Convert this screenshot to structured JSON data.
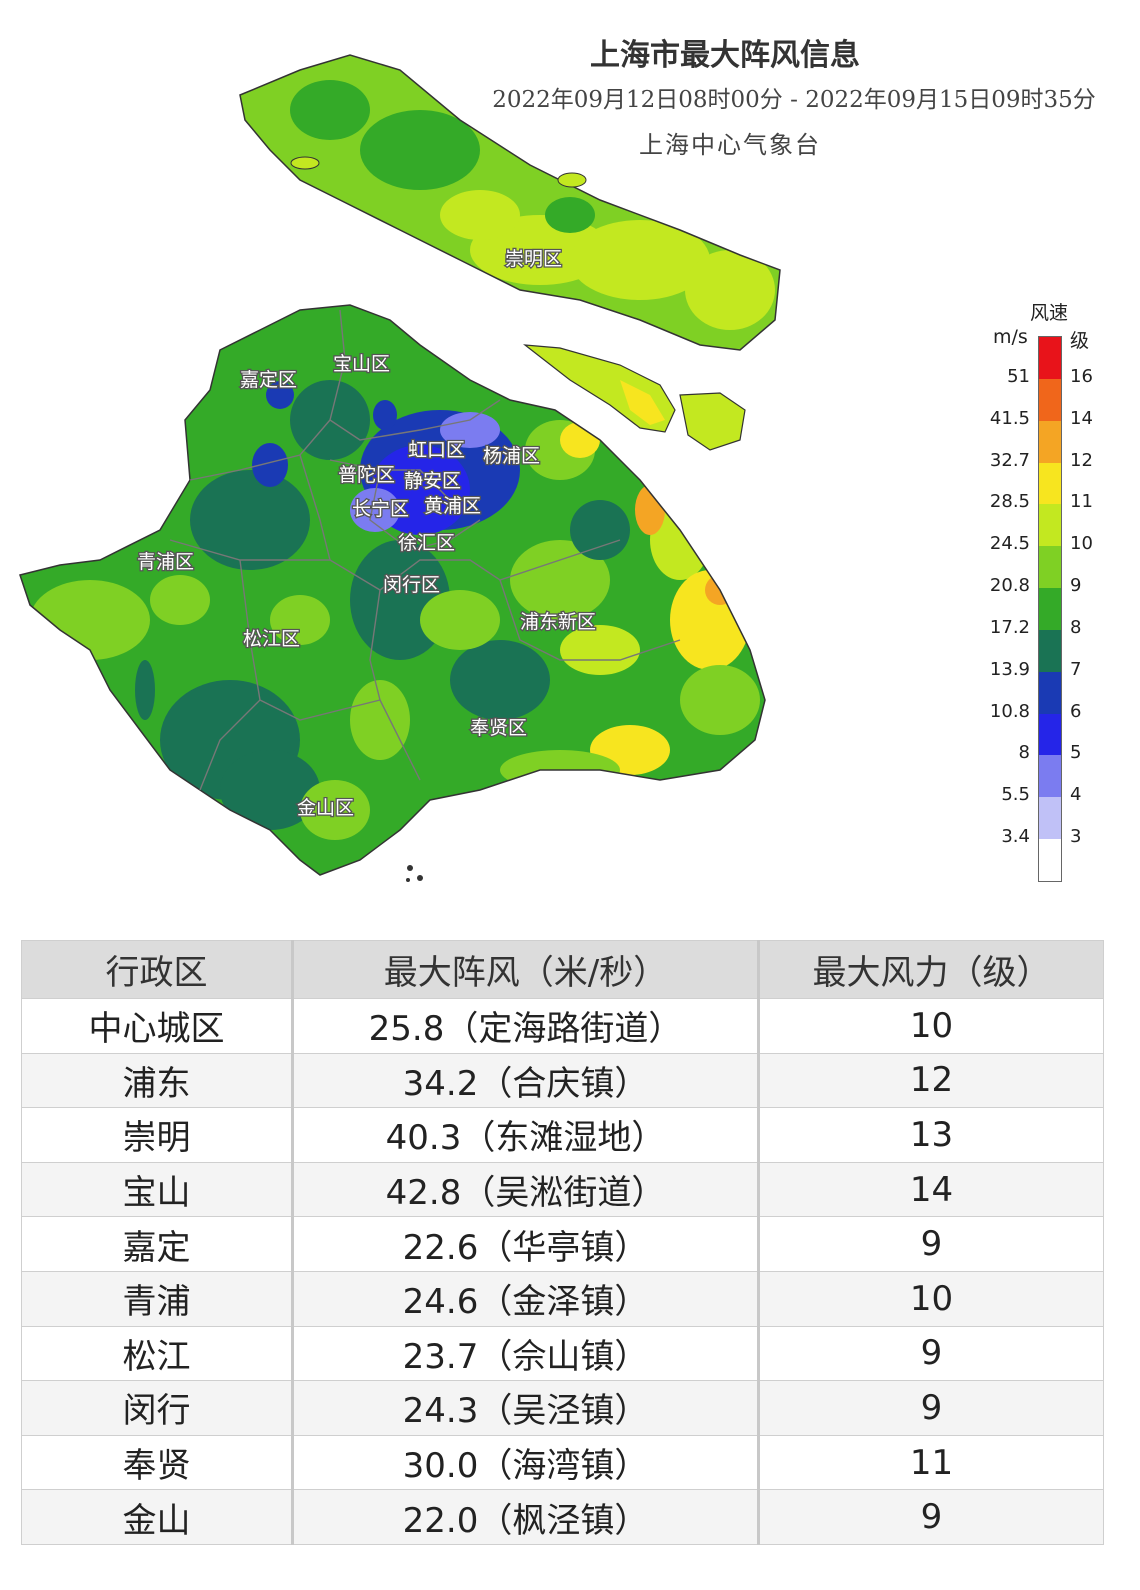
{
  "header": {
    "title": "上海市最大阵风信息",
    "period": "2022年09月12日08时00分 - 2022年09月15日09时35分",
    "agency": "上海中心气象台"
  },
  "map": {
    "district_labels": [
      "崇明区",
      "宝山区",
      "嘉定区",
      "虹口区",
      "杨浦区",
      "普陀区",
      "静安区",
      "长宁区",
      "黄浦区",
      "徐汇区",
      "青浦区",
      "闵行区",
      "浦东新区",
      "松江区",
      "奉贤区",
      "金山区"
    ]
  },
  "legend": {
    "title": "风速",
    "unit": "m/s",
    "grade_unit": "级",
    "speeds": [
      "51",
      "41.5",
      "32.7",
      "28.5",
      "24.5",
      "20.8",
      "17.2",
      "13.9",
      "10.8",
      "8",
      "5.5",
      "3.4"
    ],
    "levels": [
      "16",
      "14",
      "12",
      "11",
      "10",
      "9",
      "8",
      "7",
      "6",
      "5",
      "4",
      "3"
    ],
    "colors": [
      "#e8131a",
      "#f0661b",
      "#f4a524",
      "#f7e51f",
      "#c3e820",
      "#7fd024",
      "#34aa28",
      "#1a7354",
      "#1a3ab4",
      "#2525e8",
      "#7b7cf0",
      "#c0c1f7",
      "#ffffff"
    ]
  },
  "table": {
    "headers": [
      "行政区",
      "最大阵风（米/秒）",
      "最大风力（级）"
    ],
    "rows": [
      [
        "中心城区",
        "25.8（定海路街道）",
        "10"
      ],
      [
        "浦东",
        "34.2（合庆镇）",
        "12"
      ],
      [
        "崇明",
        "40.3（东滩湿地）",
        "13"
      ],
      [
        "宝山",
        "42.8（吴淞街道）",
        "14"
      ],
      [
        "嘉定",
        "22.6（华亭镇）",
        "9"
      ],
      [
        "青浦",
        "24.6（金泽镇）",
        "10"
      ],
      [
        "松江",
        "23.7（佘山镇）",
        "9"
      ],
      [
        "闵行",
        "24.3（吴泾镇）",
        "9"
      ],
      [
        "奉贤",
        "30.0（海湾镇）",
        "11"
      ],
      [
        "金山",
        "22.0（枫泾镇）",
        "9"
      ]
    ]
  }
}
